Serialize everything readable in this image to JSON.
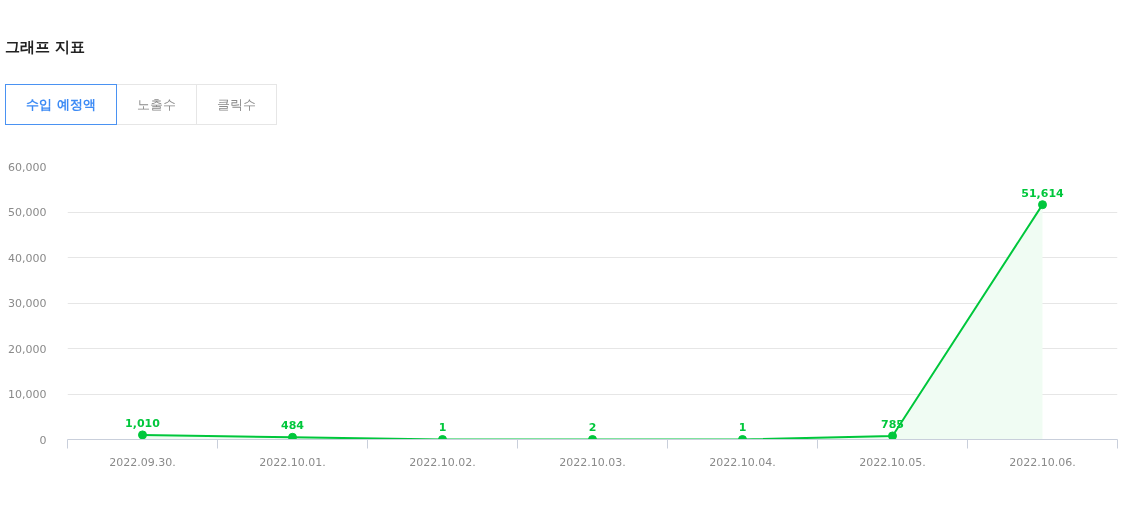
{
  "chart_data": {
    "type": "area",
    "title": "그래프 지표",
    "annotations": [
      "수입 예정액",
      "노출수",
      "클릭수"
    ],
    "categories": [
      "2022.09.30.",
      "2022.10.01.",
      "2022.10.02.",
      "2022.10.03.",
      "2022.10.04.",
      "2022.10.05.",
      "2022.10.06."
    ],
    "series": [
      {
        "color": "#00c73c",
        "values": [
          1010,
          484,
          1,
          2,
          1,
          785,
          51614
        ],
        "value_labels": [
          "1,010",
          "484",
          "1",
          "2",
          "1",
          "785",
          "51,614"
        ]
      }
    ],
    "ylim": [
      0,
      60000
    ],
    "yticks": [
      0,
      {
        "value": 10000,
        "label": "10,000"
      },
      {
        "value": 20000,
        "label": "20,000"
      },
      {
        "value": 30000,
        "label": "30,000"
      },
      {
        "value": 40000,
        "label": "40,000"
      },
      {
        "value": 50000,
        "label": "50,000"
      },
      {
        "value": 60000,
        "label": "60,000"
      }
    ],
    "grid": "y",
    "marker": "circle",
    "line_style": "solid"
  }
}
